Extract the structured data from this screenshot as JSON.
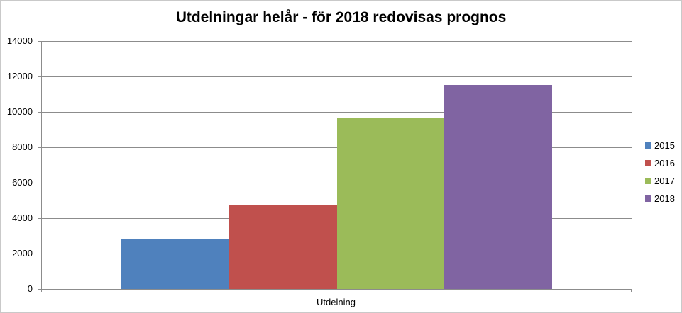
{
  "chart_data": {
    "type": "bar",
    "title": "Utdelningar helår - för 2018 redovisas prognos",
    "categories": [
      "Utdelning"
    ],
    "series": [
      {
        "name": "2015",
        "values": [
          2840
        ],
        "color": "#4F81BD"
      },
      {
        "name": "2016",
        "values": [
          4720
        ],
        "color": "#C0504D"
      },
      {
        "name": "2017",
        "values": [
          9680
        ],
        "color": "#9BBB59"
      },
      {
        "name": "2018",
        "values": [
          11520
        ],
        "color": "#8064A2"
      }
    ],
    "xlabel": "Utdelning",
    "ylabel": "",
    "ylim": [
      0,
      14000
    ],
    "ytick_step": 2000,
    "ytick_labels": [
      "0",
      "2000",
      "4000",
      "6000",
      "8000",
      "10000",
      "12000",
      "14000"
    ],
    "grid": true,
    "legend_position": "right",
    "axis_color": "#8C8C8C",
    "gridline_color": "#8C8C8C",
    "background_color": "#FFFFFF",
    "border_color": "#C9C9C9"
  }
}
